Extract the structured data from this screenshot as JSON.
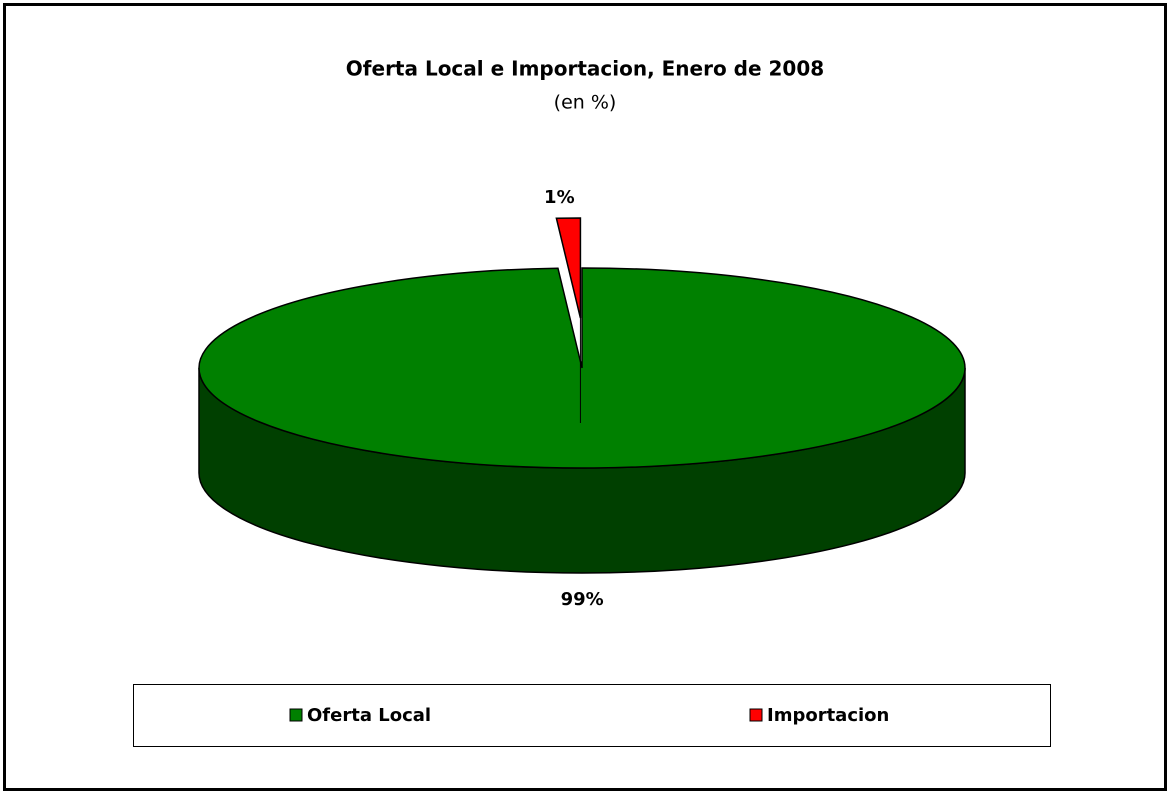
{
  "chart_data": {
    "type": "pie",
    "title": "Oferta Local e Importacion, Enero de 2008",
    "subtitle": "(en %)",
    "categories": [
      "Oferta Local",
      "Importacion"
    ],
    "values": [
      99,
      1
    ],
    "value_labels": [
      "99%",
      "1%"
    ],
    "colors": [
      "#008000",
      "#ff0000"
    ],
    "legend": "bottom"
  }
}
